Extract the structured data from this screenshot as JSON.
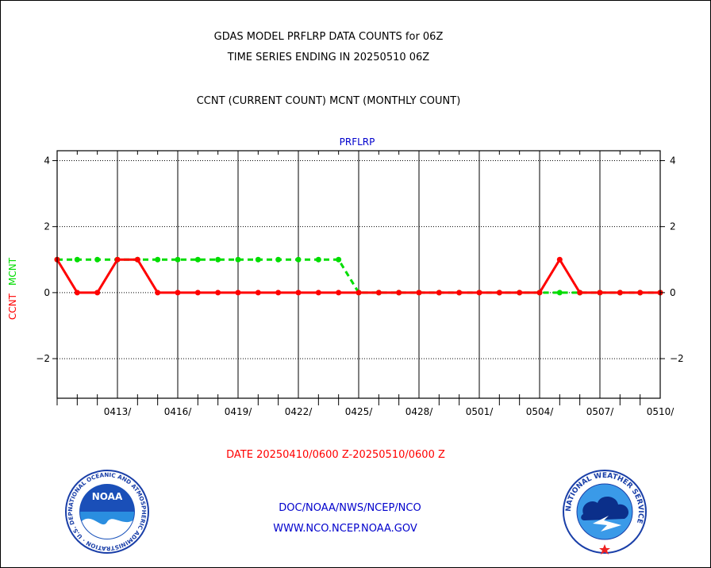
{
  "header": {
    "title_line1": "GDAS MODEL PRFLRP DATA COUNTS for 06Z",
    "title_line2": "TIME SERIES ENDING IN 20250510 06Z",
    "subtitle": "CCNT (CURRENT COUNT) MCNT (MONTHLY COUNT)"
  },
  "footer": {
    "date_range": "DATE 20250410/0600 Z-20250510/0600 Z",
    "org_line1": "DOC/NOAA/NWS/NCEP/NCO",
    "org_line2": "WWW.NCO.NCEP.NOAA.GOV"
  },
  "logos": {
    "noaa_text": "NOAA",
    "noaa_ring_text": "NATIONAL OCEANIC AND ATMOSPHERIC ADMINISTRATION · U.S. DEPARTMENT OF COMMERCE ·",
    "nws_ring_text": "NATIONAL WEATHER SERVICE"
  },
  "colors": {
    "ccnt": "#ff0000",
    "mcnt": "#00dd00",
    "panel_title": "#0000cc",
    "footer_blue": "#0000cc",
    "footer_red": "#ff0000"
  },
  "chart_data": {
    "type": "line",
    "title": "PRFLRP",
    "ylabel_ccnt": "CCNT",
    "ylabel_mcnt": "MCNT",
    "ylim": [
      -3.2,
      4.3
    ],
    "yticks": [
      -2,
      0,
      2,
      4
    ],
    "x": [
      "0410",
      "0411",
      "0412",
      "0413",
      "0414",
      "0415",
      "0416",
      "0417",
      "0418",
      "0419",
      "0420",
      "0421",
      "0422",
      "0423",
      "0424",
      "0425",
      "0426",
      "0427",
      "0428",
      "0429",
      "0430",
      "0501",
      "0502",
      "0503",
      "0504",
      "0505",
      "0506",
      "0507",
      "0508",
      "0509",
      "0510"
    ],
    "xtick_labels": [
      "0413/",
      "0416/",
      "0419/",
      "0422/",
      "0425/",
      "0428/",
      "0501/",
      "0504/",
      "0507/",
      "0510/"
    ],
    "grid": true,
    "series": [
      {
        "name": "CCNT",
        "style": "solid",
        "values": [
          1,
          0,
          0,
          1,
          1,
          0,
          0,
          0,
          0,
          0,
          0,
          0,
          0,
          0,
          0,
          0,
          0,
          0,
          0,
          0,
          0,
          0,
          0,
          0,
          0,
          1,
          0,
          0,
          0,
          0,
          0
        ]
      },
      {
        "name": "MCNT",
        "style": "dashed",
        "values": [
          1,
          1,
          1,
          1,
          1,
          1,
          1,
          1,
          1,
          1,
          1,
          1,
          1,
          1,
          1,
          0,
          0,
          0,
          0,
          0,
          0,
          0,
          0,
          0,
          0,
          0,
          0,
          0,
          0,
          0,
          0
        ]
      }
    ]
  }
}
